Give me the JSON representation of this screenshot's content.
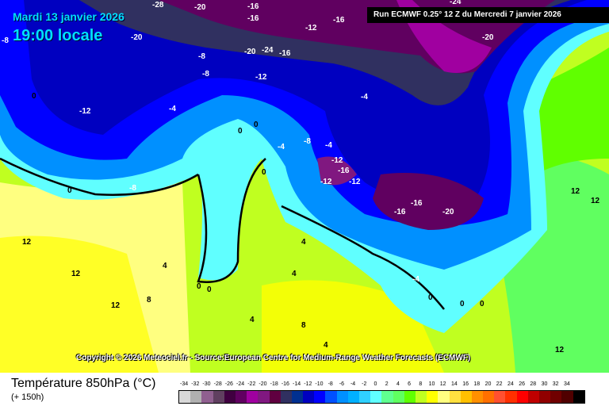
{
  "header": {
    "date": "Mardi 13 janvier 2026",
    "time": "19:00 locale",
    "run": "Run ECMWF 0.25° 12 Z du Mercredi 7 janvier 2026"
  },
  "copyright": "Copyright © 2026 Meteociel.fr - Source:European Centre for Medium-Range Weather Forecasts (ECMWF)",
  "legend": {
    "title": "Température 850hPa (°C)",
    "subtitle": "(+ 150h)",
    "ticks": [
      "-34",
      "-32",
      "-30",
      "-28",
      "-26",
      "-24",
      "-22",
      "-20",
      "-18",
      "-16",
      "-14",
      "-12",
      "-10",
      "-8",
      "-6",
      "-4",
      "-2",
      "0",
      "2",
      "4",
      "6",
      "8",
      "10",
      "12",
      "14",
      "16",
      "18",
      "20",
      "22",
      "24",
      "26",
      "28",
      "30",
      "32",
      "34"
    ],
    "colors": [
      "#d8d8d8",
      "#b0b0b0",
      "#906090",
      "#604060",
      "#400040",
      "#600060",
      "#a000a0",
      "#801880",
      "#600040",
      "#303060",
      "#003090",
      "#0000c0",
      "#0000ff",
      "#0050ff",
      "#0090ff",
      "#00b0ff",
      "#30d0ff",
      "#60ffff",
      "#60ff90",
      "#60ff60",
      "#60ff00",
      "#c0ff20",
      "#ffff00",
      "#ffff80",
      "#ffe040",
      "#ffc000",
      "#ff9000",
      "#ff7000",
      "#ff5030",
      "#ff3000",
      "#ff0000",
      "#c00000",
      "#900000",
      "#700000",
      "#500000",
      "#000000"
    ]
  },
  "contour_labels": [
    "-28",
    "-20",
    "-16",
    "-16",
    "-20",
    "-12",
    "-16",
    "-24",
    "-20",
    "-16",
    "-8",
    "-20",
    "-24",
    "-8",
    "-12",
    "-12",
    "-4",
    "-4",
    "-12",
    "-8",
    "-4",
    "-12",
    "-16",
    "-12",
    "-16",
    "-16",
    "-20",
    "-8",
    "0",
    "0",
    "0",
    "-4",
    "0",
    "0",
    "-8",
    "12",
    "12",
    "12",
    "4",
    "4",
    "0",
    "0",
    "8",
    "4",
    "-4",
    "0",
    "0",
    "0",
    "4",
    "12",
    "12",
    "12",
    "8",
    "4"
  ]
}
